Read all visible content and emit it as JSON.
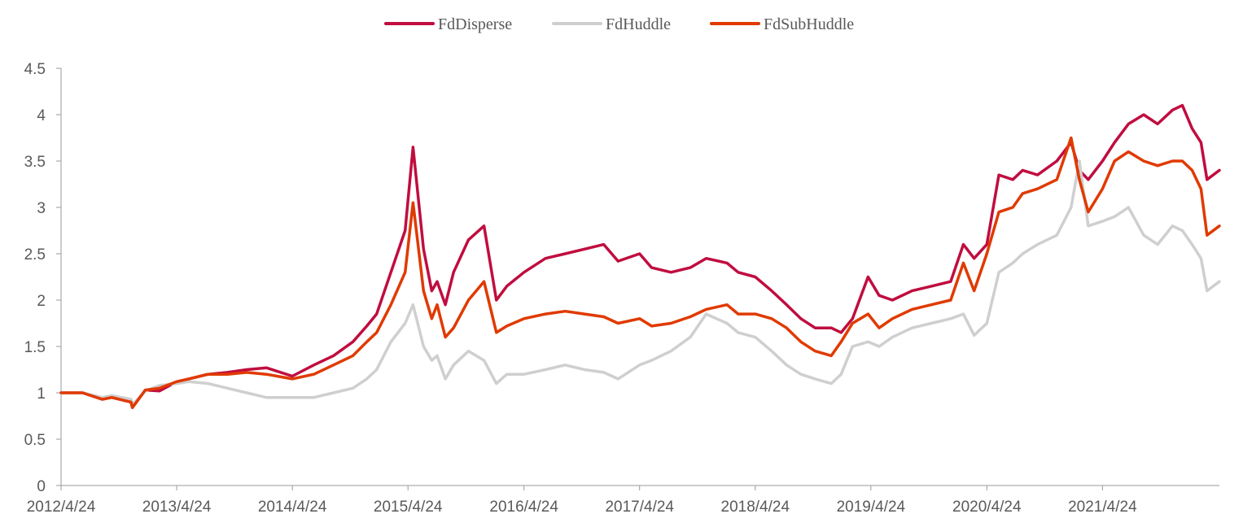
{
  "chart_data": {
    "type": "line",
    "title": "",
    "xlabel": "",
    "ylabel": "",
    "ylim": [
      0,
      4.5
    ],
    "yticks": [
      "0",
      "0.5",
      "1",
      "1.5",
      "2",
      "2.5",
      "3",
      "3.5",
      "4",
      "4.5"
    ],
    "xticks": [
      "2012/4/24",
      "2013/4/24",
      "2014/4/24",
      "2015/4/24",
      "2016/4/24",
      "2017/4/24",
      "2018/4/24",
      "2019/4/24",
      "2020/4/24",
      "2021/4/24"
    ],
    "xlim": [
      "2012/4/24",
      "2022/4/28"
    ],
    "grid": false,
    "legend_position": "top-center",
    "x": [
      "2012/4/24",
      "2012/7/1",
      "2012/9/1",
      "2012/10/1",
      "2012/12/1",
      "2012/12/5",
      "2013/1/15",
      "2013/3/1",
      "2013/4/24",
      "2013/6/1",
      "2013/8/1",
      "2013/10/1",
      "2013/12/1",
      "2014/2/1",
      "2014/4/24",
      "2014/7/1",
      "2014/9/1",
      "2014/11/1",
      "2014/12/15",
      "2015/1/15",
      "2015/3/1",
      "2015/4/15",
      "2015/5/10",
      "2015/6/12",
      "2015/7/8",
      "2015/7/25",
      "2015/8/20",
      "2015/9/15",
      "2015/11/1",
      "2015/12/20",
      "2016/1/28",
      "2016/3/1",
      "2016/4/24",
      "2016/7/1",
      "2016/9/1",
      "2016/11/1",
      "2017/1/1",
      "2017/2/15",
      "2017/4/24",
      "2017/6/1",
      "2017/8/1",
      "2017/10/1",
      "2017/11/20",
      "2018/1/25",
      "2018/3/1",
      "2018/4/24",
      "2018/6/15",
      "2018/8/1",
      "2018/9/15",
      "2018/10/30",
      "2018/12/20",
      "2019/1/20",
      "2019/2/25",
      "2019/4/15",
      "2019/5/20",
      "2019/7/1",
      "2019/9/1",
      "2019/11/1",
      "2020/1/1",
      "2020/2/10",
      "2020/3/15",
      "2020/4/24",
      "2020/6/1",
      "2020/7/15",
      "2020/8/15",
      "2020/10/1",
      "2020/12/1",
      "2021/1/15",
      "2021/2/10",
      "2021/3/10",
      "2021/4/24",
      "2021/6/1",
      "2021/7/15",
      "2021/9/1",
      "2021/10/15",
      "2021/12/1",
      "2022/1/1",
      "2022/2/1",
      "2022/3/1",
      "2022/3/20",
      "2022/4/28"
    ],
    "series": [
      {
        "name": "FdDisperse",
        "color": "#C00D3F",
        "values": [
          1.0,
          1.0,
          0.93,
          0.95,
          0.9,
          0.84,
          1.03,
          1.02,
          1.12,
          1.15,
          1.2,
          1.22,
          1.25,
          1.27,
          1.18,
          1.3,
          1.4,
          1.55,
          1.72,
          1.85,
          2.3,
          2.75,
          3.65,
          2.55,
          2.1,
          2.2,
          1.95,
          2.3,
          2.65,
          2.8,
          2.0,
          2.15,
          2.3,
          2.45,
          2.5,
          2.55,
          2.6,
          2.42,
          2.5,
          2.35,
          2.3,
          2.35,
          2.45,
          2.4,
          2.3,
          2.25,
          2.1,
          1.95,
          1.8,
          1.7,
          1.7,
          1.65,
          1.8,
          2.25,
          2.05,
          2.0,
          2.1,
          2.15,
          2.2,
          2.6,
          2.45,
          2.6,
          3.35,
          3.3,
          3.4,
          3.35,
          3.5,
          3.7,
          3.4,
          3.3,
          3.5,
          3.7,
          3.9,
          4.0,
          3.9,
          4.05,
          4.1,
          3.85,
          3.7,
          3.3,
          3.4
        ]
      },
      {
        "name": "FdHuddle",
        "color": "#CFCFCF",
        "values": [
          1.0,
          1.0,
          0.95,
          0.97,
          0.93,
          0.87,
          1.02,
          1.08,
          1.1,
          1.12,
          1.1,
          1.05,
          1.0,
          0.95,
          0.95,
          0.95,
          1.0,
          1.05,
          1.15,
          1.25,
          1.55,
          1.75,
          1.95,
          1.5,
          1.35,
          1.4,
          1.15,
          1.3,
          1.45,
          1.35,
          1.1,
          1.2,
          1.2,
          1.25,
          1.3,
          1.25,
          1.22,
          1.15,
          1.3,
          1.35,
          1.45,
          1.6,
          1.85,
          1.75,
          1.65,
          1.6,
          1.45,
          1.3,
          1.2,
          1.15,
          1.1,
          1.2,
          1.5,
          1.55,
          1.5,
          1.6,
          1.7,
          1.75,
          1.8,
          1.85,
          1.62,
          1.75,
          2.3,
          2.4,
          2.5,
          2.6,
          2.7,
          3.0,
          3.5,
          2.8,
          2.85,
          2.9,
          3.0,
          2.7,
          2.6,
          2.8,
          2.75,
          2.6,
          2.45,
          2.1,
          2.2
        ]
      },
      {
        "name": "FdSubHuddle",
        "color": "#E03A00",
        "values": [
          1.0,
          1.0,
          0.93,
          0.95,
          0.9,
          0.84,
          1.03,
          1.05,
          1.12,
          1.15,
          1.2,
          1.2,
          1.22,
          1.2,
          1.15,
          1.2,
          1.3,
          1.4,
          1.55,
          1.65,
          1.95,
          2.3,
          3.05,
          2.1,
          1.8,
          1.95,
          1.6,
          1.7,
          2.0,
          2.2,
          1.65,
          1.72,
          1.8,
          1.85,
          1.88,
          1.85,
          1.82,
          1.75,
          1.8,
          1.72,
          1.75,
          1.82,
          1.9,
          1.95,
          1.85,
          1.85,
          1.8,
          1.7,
          1.55,
          1.45,
          1.4,
          1.55,
          1.75,
          1.85,
          1.7,
          1.8,
          1.9,
          1.95,
          2.0,
          2.4,
          2.1,
          2.5,
          2.95,
          3.0,
          3.15,
          3.2,
          3.3,
          3.75,
          3.3,
          2.95,
          3.2,
          3.5,
          3.6,
          3.5,
          3.45,
          3.5,
          3.5,
          3.4,
          3.2,
          2.7,
          2.8
        ]
      }
    ]
  }
}
